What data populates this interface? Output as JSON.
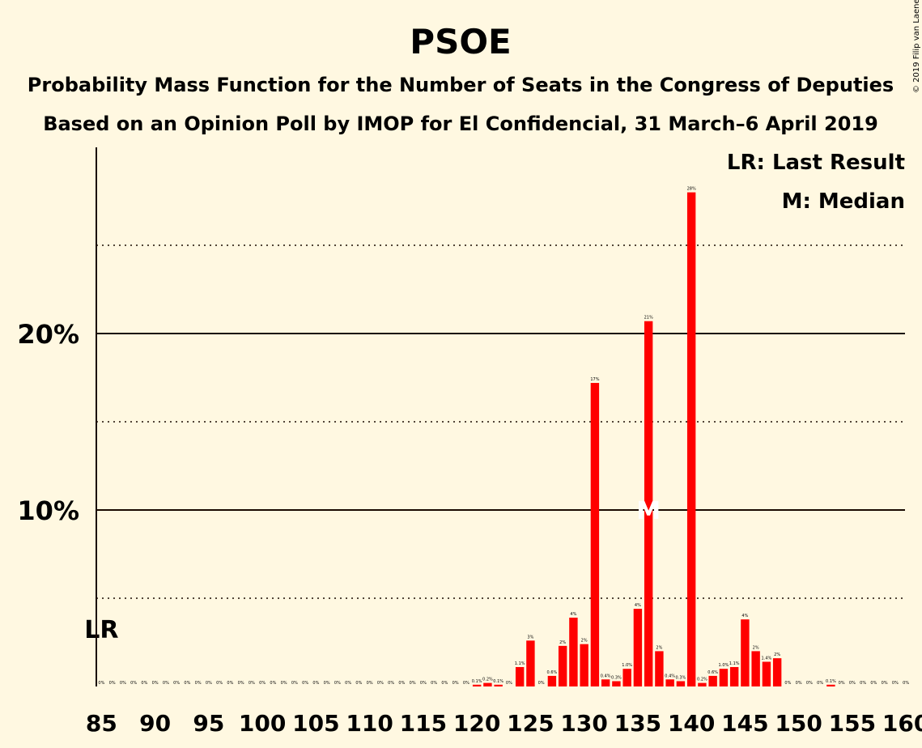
{
  "title": "PSOE",
  "subtitle1": "Probability Mass Function for the Number of Seats in the Congress of Deputies",
  "subtitle2": "Based on an Opinion Poll by IMOP for El Confidencial, 31 March–6 April 2019",
  "credit": "© 2019 Filip van Laenen",
  "legend": {
    "last_result": "LR: Last Result",
    "median": "M: Median"
  },
  "colors": {
    "background": "#fff8e1",
    "bar": "#ff0000",
    "text": "#1a0a00"
  },
  "chart_data": {
    "type": "bar",
    "x": [
      85,
      86,
      87,
      88,
      89,
      90,
      91,
      92,
      93,
      94,
      95,
      96,
      97,
      98,
      99,
      100,
      101,
      102,
      103,
      104,
      105,
      106,
      107,
      108,
      109,
      110,
      111,
      112,
      113,
      114,
      115,
      116,
      117,
      118,
      119,
      120,
      121,
      122,
      123,
      124,
      125,
      126,
      127,
      128,
      129,
      130,
      131,
      132,
      133,
      134,
      135,
      136,
      137,
      138,
      139,
      140,
      141,
      142,
      143,
      144,
      145,
      146,
      147,
      148,
      149,
      150,
      151,
      152,
      153,
      154,
      155,
      156,
      157,
      158,
      159,
      160
    ],
    "values": [
      0,
      0,
      0,
      0,
      0,
      0,
      0,
      0,
      0,
      0,
      0,
      0,
      0,
      0,
      0,
      0,
      0,
      0,
      0,
      0,
      0,
      0,
      0,
      0,
      0,
      0,
      0,
      0,
      0,
      0,
      0,
      0,
      0,
      0,
      0,
      0.1,
      0.2,
      0.1,
      0,
      1.1,
      2.6,
      0,
      0.6,
      2.3,
      3.9,
      2.4,
      17.2,
      0.4,
      0.3,
      1.0,
      4.4,
      20.7,
      2.0,
      0.4,
      0.3,
      28.0,
      0.2,
      0.6,
      1.0,
      1.1,
      3.8,
      2.0,
      1.4,
      1.6,
      0,
      0,
      0,
      0,
      0.1,
      0,
      0,
      0,
      0,
      0,
      0,
      0
    ],
    "labels": [
      "0%",
      "0%",
      "0%",
      "0%",
      "0%",
      "0%",
      "0%",
      "0%",
      "0%",
      "0%",
      "0%",
      "0%",
      "0%",
      "0%",
      "0%",
      "0%",
      "0%",
      "0%",
      "0%",
      "0%",
      "0%",
      "0%",
      "0%",
      "0%",
      "0%",
      "0%",
      "0%",
      "0%",
      "0%",
      "0%",
      "0%",
      "0%",
      "0%",
      "0%",
      "0%",
      "0.1%",
      "0.2%",
      "0.1%",
      "0%",
      "1.1%",
      "3%",
      "0%",
      "0.6%",
      "2%",
      "4%",
      "2%",
      "17%",
      "0.4%",
      "0.3%",
      "1.0%",
      "4%",
      "21%",
      "2%",
      "0.4%",
      "0.3%",
      "28%",
      "0.2%",
      "0.6%",
      "1.0%",
      "1.1%",
      "4%",
      "2%",
      "1.4%",
      "2%",
      "0%",
      "0%",
      "0%",
      "0%",
      "0.1%",
      "0%",
      "0%",
      "0%",
      "0%",
      "0%",
      "0%",
      "0%"
    ],
    "x_ticks": [
      "85",
      "90",
      "95",
      "100",
      "105",
      "110",
      "115",
      "120",
      "125",
      "130",
      "135",
      "140",
      "145",
      "150",
      "155",
      "160"
    ],
    "y_ticks": [
      "10%",
      "20%"
    ],
    "ylim": [
      0,
      30
    ],
    "last_result": {
      "seat": 85,
      "label": "LR"
    },
    "median": {
      "seat": 136,
      "label": "M"
    },
    "grid": true
  }
}
